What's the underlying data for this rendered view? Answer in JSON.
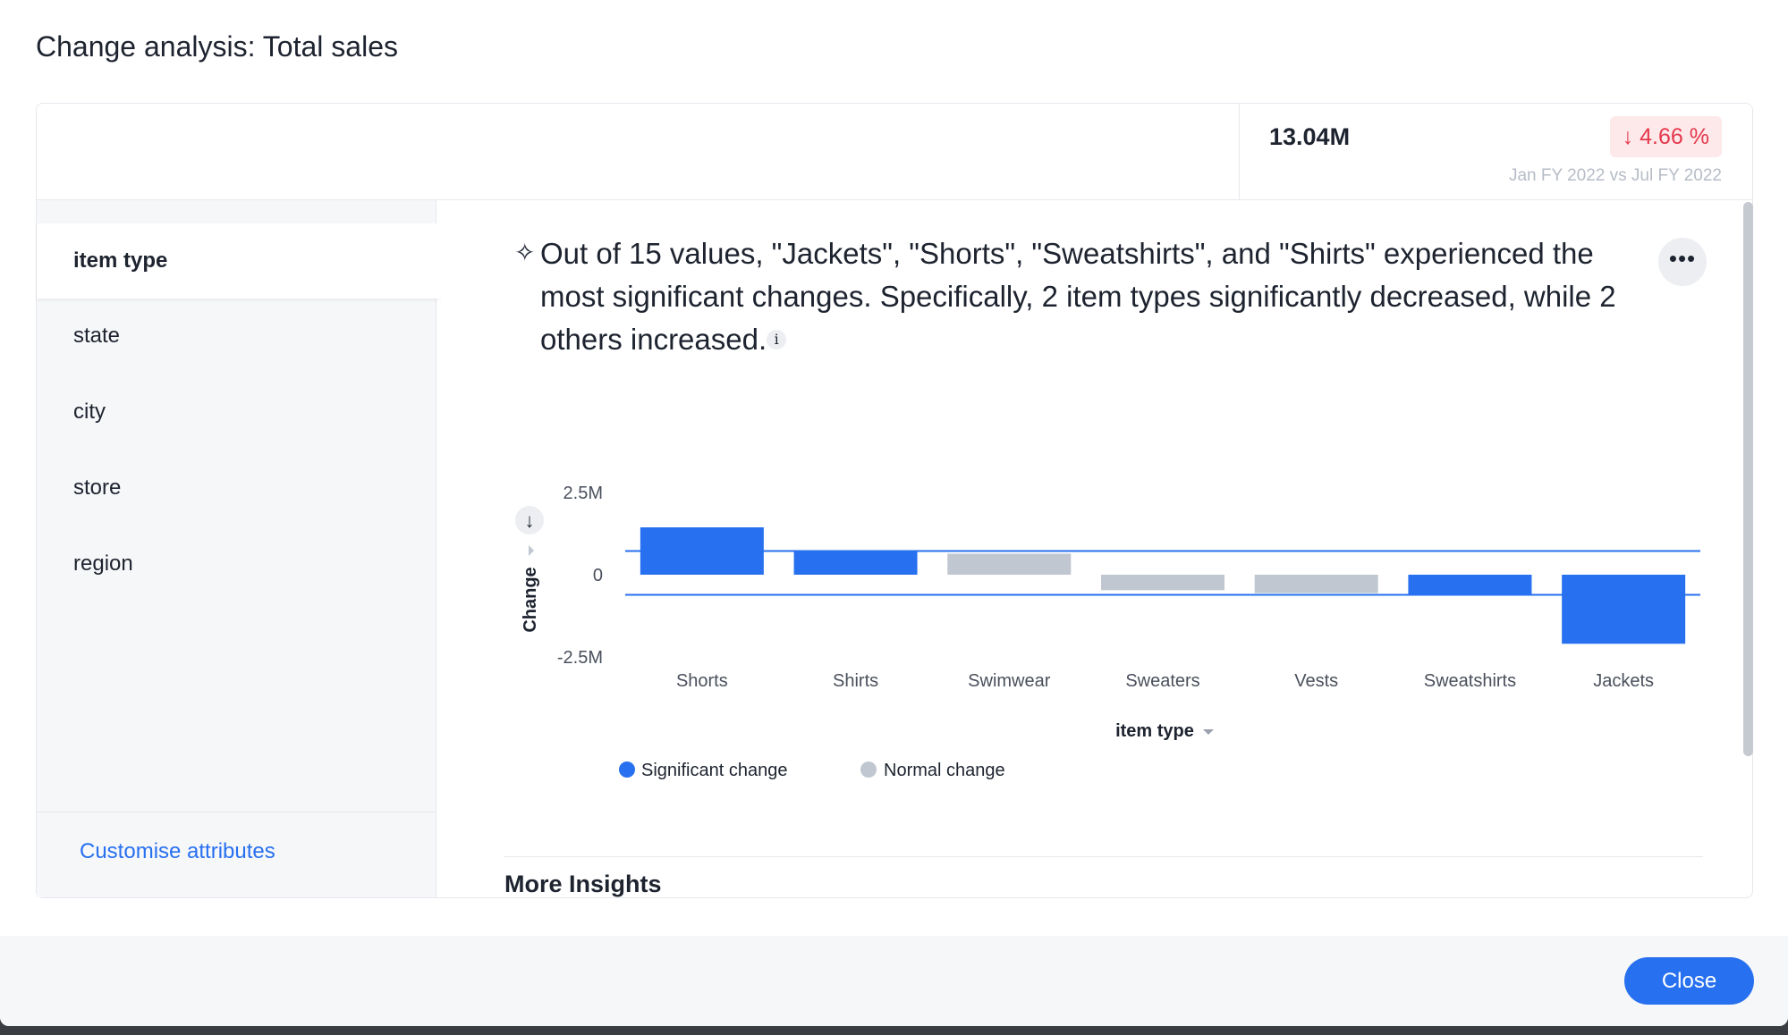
{
  "dialog": {
    "title": "Change analysis: Total sales",
    "close_label": "Close"
  },
  "summary": {
    "value": "13.04M",
    "change_arrow": "↓",
    "change": "4.66 %",
    "period": "Jan FY 2022 vs Jul FY 2022",
    "change_color": "#e5384b"
  },
  "sidebar": {
    "items": [
      {
        "label": "item type",
        "active": true
      },
      {
        "label": "state"
      },
      {
        "label": "city"
      },
      {
        "label": "store"
      },
      {
        "label": "region"
      }
    ],
    "customise_label": "Customise attributes"
  },
  "insight": {
    "text": "Out of 15 values, \"Jackets\", \"Shorts\", \"Sweatshirts\", and \"Shirts\" experienced the most significant changes. Specifically, 2 item types significantly decreased, while 2 others increased.",
    "info_icon": "i",
    "more_icon": "•••"
  },
  "chart_data": {
    "type": "bar",
    "ylabel": "Change",
    "xlabel": "item type",
    "ylim": [
      -2.5,
      2.5
    ],
    "unit": "M",
    "yticks": [
      {
        "v": 2.5,
        "label": "2.5M"
      },
      {
        "v": 0,
        "label": "0"
      },
      {
        "v": -2.5,
        "label": "-2.5M"
      }
    ],
    "categories": [
      "Shorts",
      "Shirts",
      "Swimwear",
      "Sweaters",
      "Vests",
      "Sweatshirts",
      "Jackets"
    ],
    "values": [
      1.44,
      0.72,
      0.64,
      -0.47,
      -0.56,
      -0.61,
      -2.1
    ],
    "significant": [
      true,
      true,
      false,
      false,
      false,
      true,
      true
    ],
    "thresholds": [
      0.72,
      -0.61
    ],
    "legend": [
      {
        "name": "Significant change",
        "color": "#2770ef"
      },
      {
        "name": "Normal change",
        "color": "#c0c7d1"
      }
    ],
    "legend_position": "bottom-left"
  },
  "more_insights": {
    "title": "More Insights"
  }
}
